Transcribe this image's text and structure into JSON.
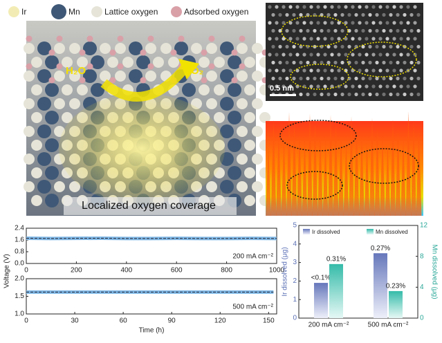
{
  "illustration": {
    "legend": [
      "Ir",
      "Mn",
      "Lattice oxygen",
      "Adsorbed oxygen"
    ],
    "reactant": "H₂O",
    "product": "O₂",
    "caption": "Localized oxygen coverage"
  },
  "stem": {
    "scale_bar": "0.5 nm"
  },
  "chart_data": [
    {
      "type": "line",
      "ylabel": "Voltage (V)",
      "annotation": "200 mA cm⁻²",
      "x": [
        0,
        100,
        200,
        300,
        400,
        500,
        600,
        700,
        800,
        900,
        1000
      ],
      "series": [
        {
          "color": "#7fb8e6",
          "values": [
            1.72,
            1.7,
            1.71,
            1.72,
            1.7,
            1.7,
            1.71,
            1.7,
            1.7,
            1.71,
            1.7
          ]
        }
      ],
      "xlim": [
        0,
        1000
      ],
      "xticks": [
        0,
        200,
        400,
        600,
        800,
        1000
      ],
      "ylim": [
        0,
        2.4
      ],
      "yticks": [
        {
          "value": 0,
          "label": "0.0"
        },
        0.8,
        1.6,
        2.4
      ]
    },
    {
      "type": "line",
      "xlabel": "Time (h)",
      "annotation": "500 mA cm⁻²",
      "x": [
        0,
        15,
        30,
        45,
        60,
        75,
        90,
        105,
        120,
        135,
        150,
        153
      ],
      "series": [
        {
          "color": "#7fb8e6",
          "values": [
            1.62,
            1.62,
            1.62,
            1.62,
            1.62,
            1.62,
            1.62,
            1.62,
            1.62,
            1.62,
            1.62,
            1.62
          ]
        }
      ],
      "xlim": [
        0,
        155
      ],
      "xticks": [
        0,
        30,
        60,
        90,
        120,
        150
      ],
      "ylim": [
        1,
        2
      ],
      "yticks": [
        {
          "value": 1,
          "label": "1.0"
        },
        1.5,
        {
          "value": 2,
          "label": "2.0"
        }
      ]
    },
    {
      "type": "bar",
      "categories": [
        "200 mA cm⁻²",
        "500 mA cm⁻²"
      ],
      "ylabel": "Ir dissolved (μg)",
      "y2label": "Mn dissolved (μg)",
      "series": [
        {
          "name": "Ir dissolved",
          "color": "#6677bb",
          "values": [
            1.9,
            3.5
          ]
        },
        {
          "name": "Mn dissolved",
          "color": "#35bba9",
          "axis": "y2",
          "values": [
            7,
            3.5
          ]
        }
      ],
      "annotations": [
        [
          "<0.1%",
          "0.31%"
        ],
        [
          "0.27%",
          "0.23%"
        ]
      ],
      "ylim": [
        0,
        5
      ],
      "yticks": [
        0,
        1,
        2,
        3,
        4,
        5
      ],
      "y2lim": [
        0,
        12
      ],
      "y2ticks": [
        0,
        4,
        8,
        12
      ]
    }
  ]
}
